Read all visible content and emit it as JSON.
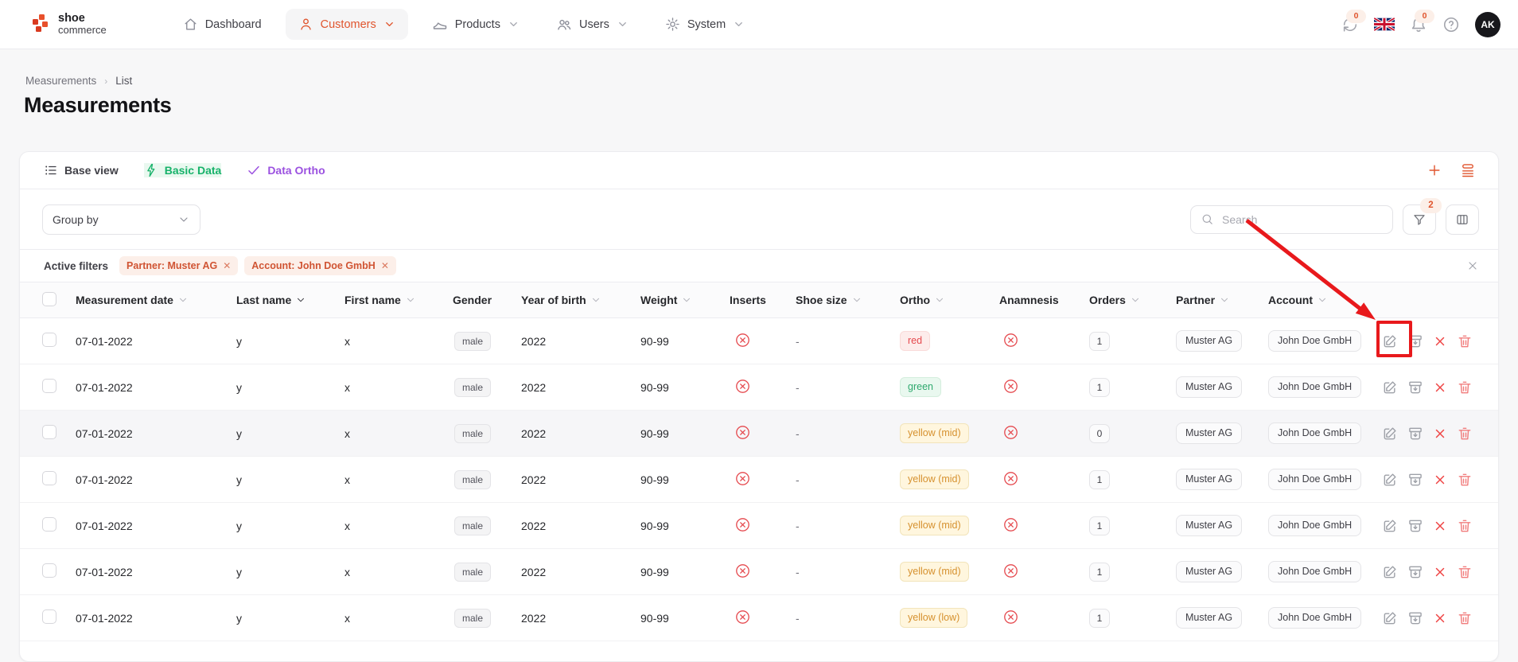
{
  "brand": {
    "line1": "shoe",
    "line2": "commerce"
  },
  "nav": {
    "items": [
      {
        "label": "Dashboard",
        "icon": "home-icon",
        "active": false,
        "chevron": false
      },
      {
        "label": "Customers",
        "icon": "person-icon",
        "active": true,
        "chevron": true
      },
      {
        "label": "Products",
        "icon": "shoe-icon",
        "active": false,
        "chevron": true
      },
      {
        "label": "Users",
        "icon": "users-icon",
        "active": false,
        "chevron": true
      },
      {
        "label": "System",
        "icon": "gear-icon",
        "active": false,
        "chevron": true
      }
    ]
  },
  "topbar": {
    "sync_badge": "0",
    "bell_badge": "0",
    "avatar_initials": "AK"
  },
  "breadcrumb": {
    "parent": "Measurements",
    "current": "List"
  },
  "page": {
    "title": "Measurements"
  },
  "view_tabs": [
    {
      "label": "Base view",
      "icon": "list-icon",
      "tone": "default"
    },
    {
      "label": "Basic Data",
      "icon": "bolt-icon",
      "tone": "green"
    },
    {
      "label": "Data Ortho",
      "icon": "check-icon",
      "tone": "purple"
    }
  ],
  "toolbar": {
    "group_by_label": "Group by",
    "search_placeholder": "Search",
    "filter_count": "2"
  },
  "filters": {
    "label": "Active filters",
    "chips": [
      {
        "text": "Partner: Muster AG"
      },
      {
        "text": "Account: John Doe GmbH"
      }
    ]
  },
  "table": {
    "columns": [
      {
        "label": "Measurement date",
        "sort": "chevron"
      },
      {
        "label": "Last name",
        "sort": "active"
      },
      {
        "label": "First name",
        "sort": "chevron"
      },
      {
        "label": "Gender",
        "sort": "none"
      },
      {
        "label": "Year of birth",
        "sort": "chevron"
      },
      {
        "label": "Weight",
        "sort": "chevron"
      },
      {
        "label": "Inserts",
        "sort": "none"
      },
      {
        "label": "Shoe size",
        "sort": "chevron"
      },
      {
        "label": "Ortho",
        "sort": "chevron"
      },
      {
        "label": "Anamnesis",
        "sort": "none"
      },
      {
        "label": "Orders",
        "sort": "chevron"
      },
      {
        "label": "Partner",
        "sort": "chevron"
      },
      {
        "label": "Account",
        "sort": "chevron"
      }
    ],
    "rows": [
      {
        "date": "07-01-2022",
        "last": "y",
        "first": "x",
        "gender": "male",
        "year": "2022",
        "weight": "90-99",
        "inserts": "no",
        "shoe_size": "-",
        "ortho": {
          "label": "red",
          "tone": "red"
        },
        "anamnesis": "no",
        "orders": "1",
        "partner": "Muster AG",
        "account": "John Doe GmbH",
        "shaded": false,
        "annotated": true
      },
      {
        "date": "07-01-2022",
        "last": "y",
        "first": "x",
        "gender": "male",
        "year": "2022",
        "weight": "90-99",
        "inserts": "no",
        "shoe_size": "-",
        "ortho": {
          "label": "green",
          "tone": "green"
        },
        "anamnesis": "no",
        "orders": "1",
        "partner": "Muster AG",
        "account": "John Doe GmbH",
        "shaded": false,
        "annotated": false
      },
      {
        "date": "07-01-2022",
        "last": "y",
        "first": "x",
        "gender": "male",
        "year": "2022",
        "weight": "90-99",
        "inserts": "no",
        "shoe_size": "-",
        "ortho": {
          "label": "yellow (mid)",
          "tone": "yellow"
        },
        "anamnesis": "no",
        "orders": "0",
        "partner": "Muster AG",
        "account": "John Doe GmbH",
        "shaded": true,
        "annotated": false
      },
      {
        "date": "07-01-2022",
        "last": "y",
        "first": "x",
        "gender": "male",
        "year": "2022",
        "weight": "90-99",
        "inserts": "no",
        "shoe_size": "-",
        "ortho": {
          "label": "yellow (mid)",
          "tone": "yellow"
        },
        "anamnesis": "no",
        "orders": "1",
        "partner": "Muster AG",
        "account": "John Doe GmbH",
        "shaded": false,
        "annotated": false
      },
      {
        "date": "07-01-2022",
        "last": "y",
        "first": "x",
        "gender": "male",
        "year": "2022",
        "weight": "90-99",
        "inserts": "no",
        "shoe_size": "-",
        "ortho": {
          "label": "yellow (mid)",
          "tone": "yellow"
        },
        "anamnesis": "no",
        "orders": "1",
        "partner": "Muster AG",
        "account": "John Doe GmbH",
        "shaded": false,
        "annotated": false
      },
      {
        "date": "07-01-2022",
        "last": "y",
        "first": "x",
        "gender": "male",
        "year": "2022",
        "weight": "90-99",
        "inserts": "no",
        "shoe_size": "-",
        "ortho": {
          "label": "yellow (mid)",
          "tone": "yellow"
        },
        "anamnesis": "no",
        "orders": "1",
        "partner": "Muster AG",
        "account": "John Doe GmbH",
        "shaded": false,
        "annotated": false
      },
      {
        "date": "07-01-2022",
        "last": "y",
        "first": "x",
        "gender": "male",
        "year": "2022",
        "weight": "90-99",
        "inserts": "no",
        "shoe_size": "-",
        "ortho": {
          "label": "yellow (low)",
          "tone": "yellow"
        },
        "anamnesis": "no",
        "orders": "1",
        "partner": "Muster AG",
        "account": "John Doe GmbH",
        "shaded": false,
        "annotated": false
      }
    ]
  },
  "annotation": {
    "color": "#e8191c",
    "target": "edit-button-row-1"
  }
}
